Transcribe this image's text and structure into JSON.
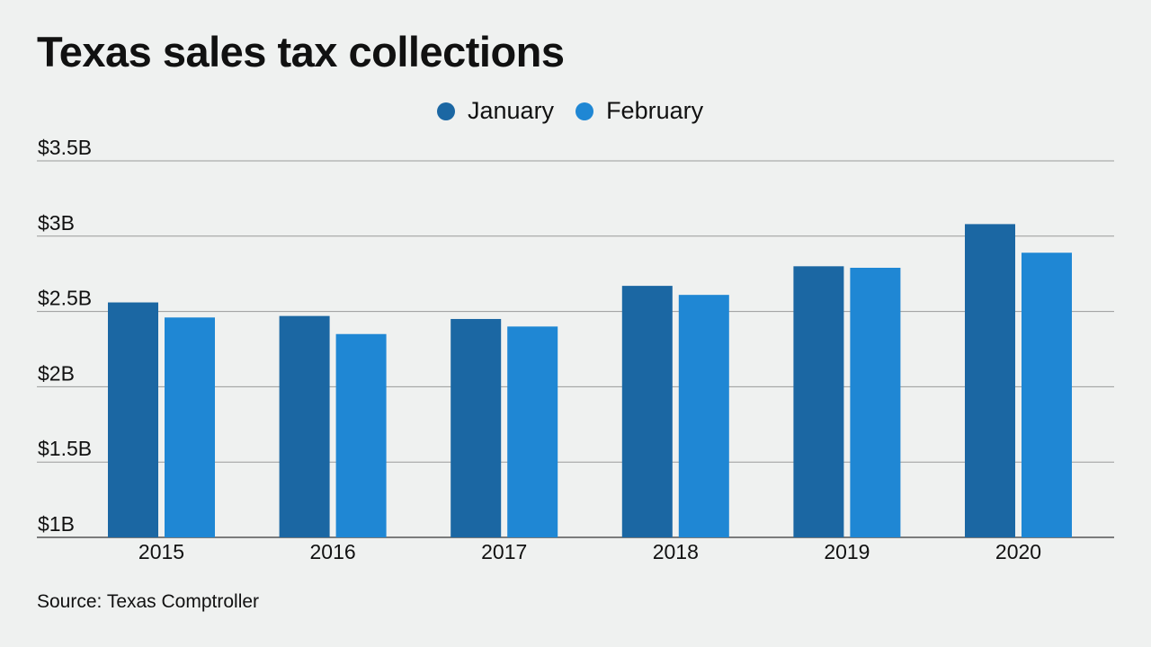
{
  "colors": {
    "january": "#1b67a3",
    "february": "#1f87d4",
    "grid": "#9a9a9a",
    "text": "#111111"
  },
  "chart_data": {
    "type": "bar",
    "title": "Texas sales tax collections",
    "xlabel": "",
    "ylabel": "",
    "categories": [
      "2015",
      "2016",
      "2017",
      "2018",
      "2019",
      "2020"
    ],
    "series": [
      {
        "name": "January",
        "values": [
          2.56,
          2.47,
          2.45,
          2.67,
          2.8,
          3.08
        ]
      },
      {
        "name": "February",
        "values": [
          2.46,
          2.35,
          2.4,
          2.61,
          2.79,
          2.89
        ]
      }
    ],
    "ylim": [
      1,
      3.5
    ],
    "yticks": [
      1,
      1.5,
      2,
      2.5,
      3,
      3.5
    ],
    "ytick_labels": [
      "$1B",
      "$1.5B",
      "$2B",
      "$2.5B",
      "$3B",
      "$3.5B"
    ],
    "grid": true,
    "legend_position": "top-center",
    "source": "Source: Texas Comptroller"
  }
}
